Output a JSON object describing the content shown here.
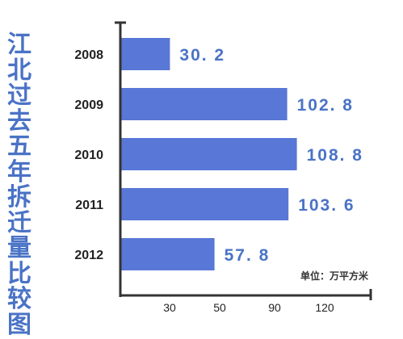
{
  "chart_data": {
    "type": "bar",
    "orientation": "horizontal",
    "title": "江北过去五年拆迁量比较图",
    "unit_label": "单位：万平方米",
    "categories": [
      "2008",
      "2009",
      "2010",
      "2011",
      "2012"
    ],
    "values": [
      30.2,
      102.8,
      108.8,
      103.6,
      57.8
    ],
    "value_labels": [
      "30. 2",
      "102. 8",
      "108. 8",
      "103. 6",
      "57. 8"
    ],
    "x_ticks": [
      "30",
      "50",
      "90",
      "120"
    ],
    "colors": {
      "bar": "#5877d6",
      "title": "#4a73c6",
      "axis": "#333333"
    }
  }
}
